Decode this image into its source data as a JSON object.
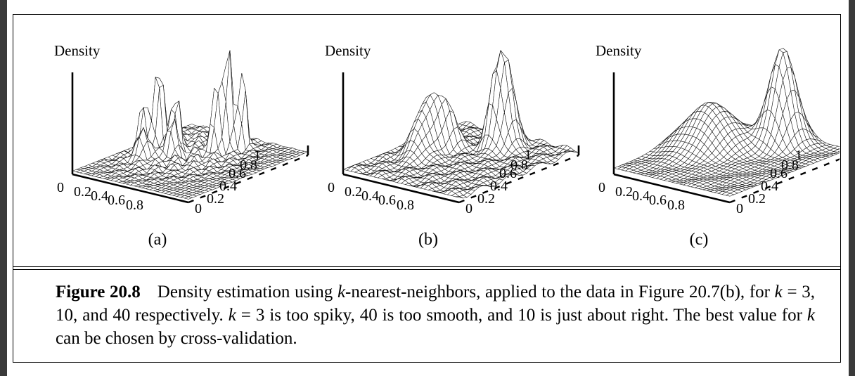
{
  "figure": {
    "panels": [
      {
        "letter": "(a)",
        "ylabel": "Density",
        "x_ticks": [
          "0",
          "0.2",
          "0.4",
          "0.6",
          "0.8"
        ],
        "y_ticks": [
          "0",
          "0.2",
          "0.4",
          "0.6",
          "0.8",
          "1"
        ]
      },
      {
        "letter": "(b)",
        "ylabel": "Density",
        "x_ticks": [
          "0",
          "0.2",
          "0.4",
          "0.6",
          "0.8"
        ],
        "y_ticks": [
          "0",
          "0.2",
          "0.4",
          "0.6",
          "0.8",
          "1"
        ]
      },
      {
        "letter": "(c)",
        "ylabel": "Density",
        "x_ticks": [
          "0",
          "0.2",
          "0.4",
          "0.6",
          "0.8"
        ],
        "y_ticks": [
          "0",
          "0.2",
          "0.4",
          "0.6",
          "0.8",
          "1"
        ]
      }
    ]
  },
  "caption": {
    "label": "Figure 20.8",
    "part1": "Density estimation using ",
    "k": "k",
    "part2": "-nearest-neighbors, applied to the data in Figure 20.7(b), for ",
    "part3": " = 3, 10, and 40 respectively. ",
    "part4": " = 3 is too spiky, 40 is too smooth, and 10 is just about right. The best value for ",
    "part5": " can be chosen by cross-validation."
  }
}
